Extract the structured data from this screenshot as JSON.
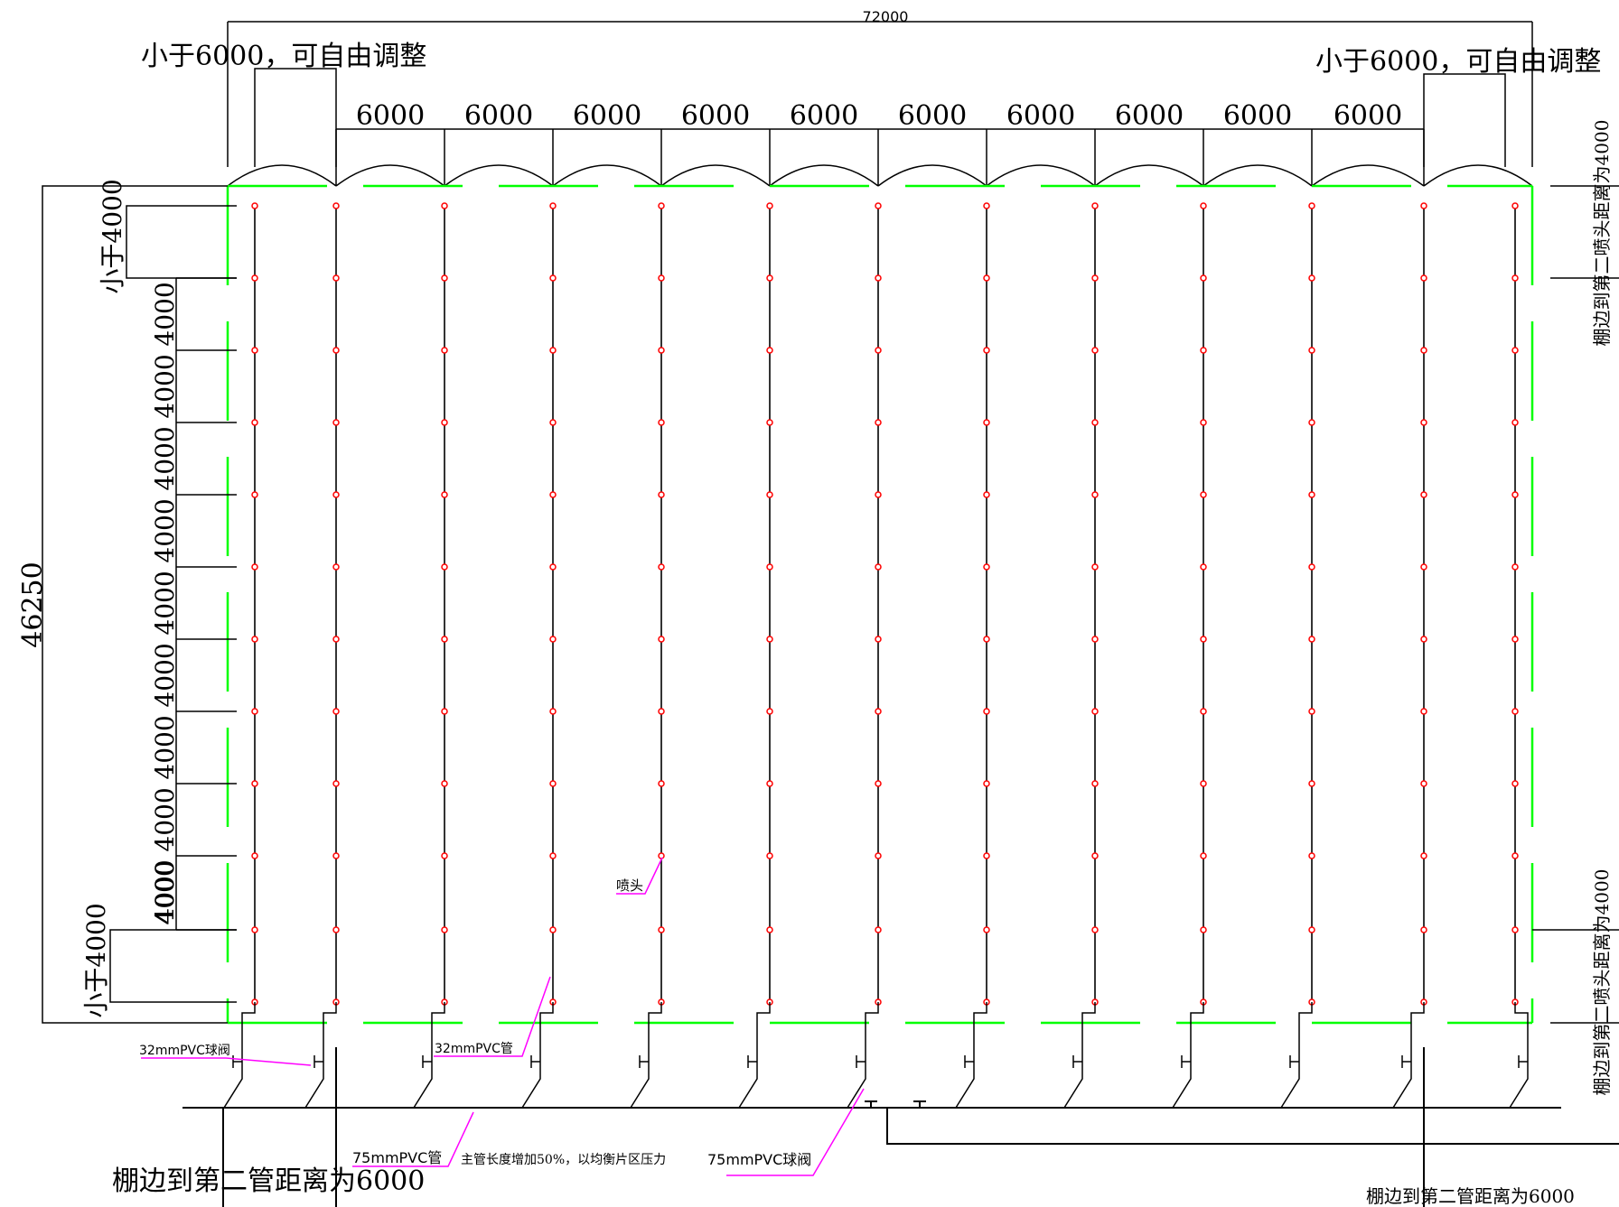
{
  "overall_width": "72000",
  "overall_height": "46250",
  "top_left_note": "小于6000，可自由调整",
  "top_right_note": "小于6000，可自由调整",
  "bay_width_label": "6000",
  "bay_count": 10,
  "left_edge_top_note": "小于4000",
  "left_edge_bottom_note": "小于4000",
  "row_spacing_label": "4000",
  "row_spacing_count": 10,
  "right_top_note": "棚边到第二喷头距离为4000",
  "right_bottom_note": "棚边到第二喷头距离为4000",
  "bottom_left_note": "棚边到第二管距离为6000",
  "bottom_right_note": "棚边到第二管距离为6000",
  "pipe_lines": 13,
  "nozzles_per_line": 12,
  "callouts": {
    "nozzle": "喷头",
    "valve32": "32mmPVC球阀",
    "pipe32": "32mmPVC管",
    "pipe75": "75mmPVC管",
    "main_pipe_note": "主管长度增加50%，以均衡片区压力",
    "valve75": "75mmPVC球阀"
  },
  "colors": {
    "line": "#000000",
    "nozzle": "#ff0000",
    "boundary": "#00ff00",
    "leader": "#ff00ff"
  }
}
